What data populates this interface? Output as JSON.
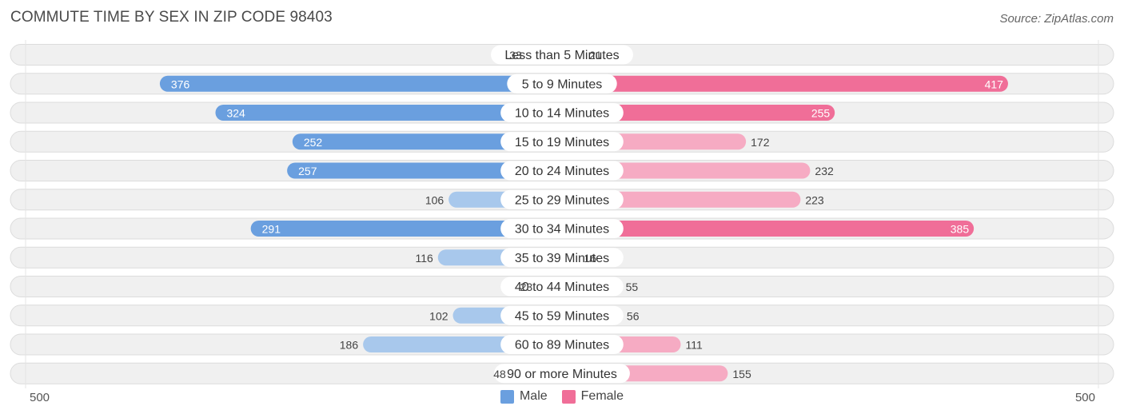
{
  "header": {
    "title": "COMMUTE TIME BY SEX IN ZIP CODE 98403",
    "source": "Source: ZipAtlas.com"
  },
  "colors": {
    "male_strong": "#6a9fdf",
    "male_light": "#a8c8ec",
    "female_strong": "#f06e98",
    "female_light": "#f6abc3",
    "row_bg": "#f0f0f0",
    "row_border": "#dcdcdc"
  },
  "axis": {
    "left_label": "500",
    "right_label": "500"
  },
  "legend": {
    "male_label": "Male",
    "female_label": "Female"
  },
  "chart_data": {
    "type": "bar",
    "orientation": "horizontal-diverging",
    "title": "COMMUTE TIME BY SEX IN ZIP CODE 98403",
    "xlim": [
      0,
      500
    ],
    "categories": [
      "Less than 5 Minutes",
      "5 to 9 Minutes",
      "10 to 14 Minutes",
      "15 to 19 Minutes",
      "20 to 24 Minutes",
      "25 to 29 Minutes",
      "30 to 34 Minutes",
      "35 to 39 Minutes",
      "40 to 44 Minutes",
      "45 to 59 Minutes",
      "60 to 89 Minutes",
      "90 or more Minutes"
    ],
    "series": [
      {
        "name": "Male",
        "values": [
          33,
          376,
          324,
          252,
          257,
          106,
          291,
          116,
          23,
          102,
          186,
          48
        ]
      },
      {
        "name": "Female",
        "values": [
          21,
          417,
          255,
          172,
          232,
          223,
          385,
          16,
          55,
          56,
          111,
          155
        ]
      }
    ],
    "legend_position": "bottom-center"
  }
}
